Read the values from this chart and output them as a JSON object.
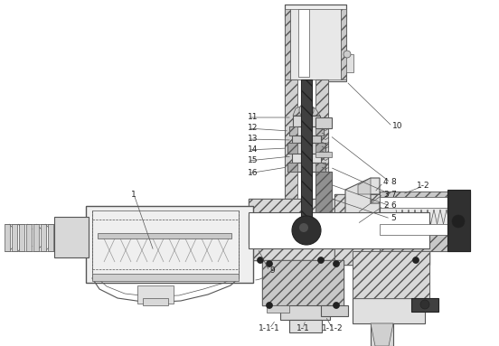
{
  "bg_color": "#ffffff",
  "lc": "#555555",
  "dc": "#222222",
  "fc_light": "#e8e8e8",
  "fc_mid": "#d0d0d0",
  "fc_dark": "#404040",
  "fc_hatch": "#cccccc",
  "figsize": [
    5.52,
    3.83
  ],
  "dpi": 100,
  "lw_thin": 0.5,
  "lw_med": 0.8,
  "lw_thick": 1.0,
  "label_fs": 6.5
}
